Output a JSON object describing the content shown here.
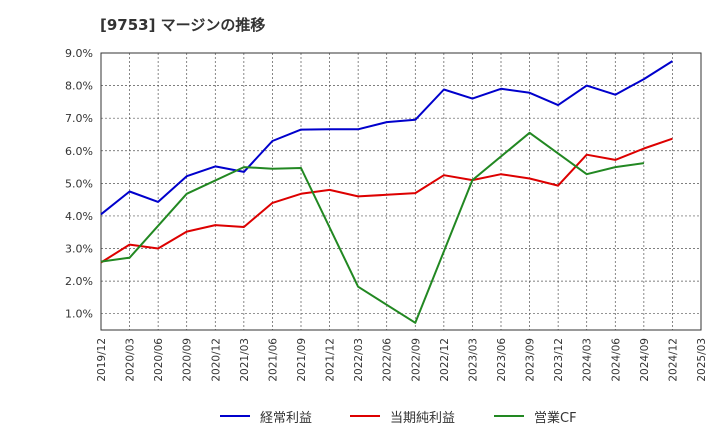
{
  "chart_data": {
    "type": "line",
    "title": "[9753]  マージンの推移",
    "xlabel": "",
    "ylabel": "",
    "x": [
      "2019/12",
      "2020/03",
      "2020/06",
      "2020/09",
      "2020/12",
      "2021/03",
      "2021/06",
      "2021/09",
      "2021/12",
      "2022/03",
      "2022/06",
      "2022/09",
      "2022/12",
      "2023/03",
      "2023/06",
      "2023/09",
      "2023/12",
      "2024/03",
      "2024/06",
      "2024/09",
      "2024/12",
      "2025/03"
    ],
    "y_ticks": [
      "1.0%",
      "2.0%",
      "3.0%",
      "4.0%",
      "5.0%",
      "6.0%",
      "7.0%",
      "8.0%",
      "9.0%"
    ],
    "ylim": [
      0.5,
      9.0
    ],
    "y_unit": "%",
    "grid": true,
    "legend_position": "bottom",
    "series": [
      {
        "name": "経常利益",
        "color": "#0000cc",
        "values": [
          4.05,
          4.75,
          4.43,
          5.22,
          5.52,
          5.35,
          6.3,
          6.65,
          6.66,
          6.66,
          6.88,
          6.95,
          7.88,
          7.6,
          7.9,
          7.78,
          7.4,
          8.0,
          7.72,
          8.2,
          8.75,
          null
        ]
      },
      {
        "name": "当期純利益",
        "color": "#dd0000",
        "values": [
          2.57,
          3.12,
          3.0,
          3.52,
          3.72,
          3.66,
          4.4,
          4.68,
          4.8,
          4.6,
          4.65,
          4.7,
          5.25,
          5.1,
          5.28,
          5.15,
          4.93,
          5.88,
          5.72,
          6.07,
          6.37,
          null
        ]
      },
      {
        "name": "営業CF",
        "color": "#228822",
        "values": [
          2.6,
          2.72,
          null,
          4.68,
          null,
          5.5,
          5.45,
          5.47,
          null,
          1.83,
          null,
          0.72,
          null,
          5.1,
          null,
          6.55,
          null,
          5.28,
          5.5,
          5.62,
          null,
          null
        ]
      }
    ]
  }
}
